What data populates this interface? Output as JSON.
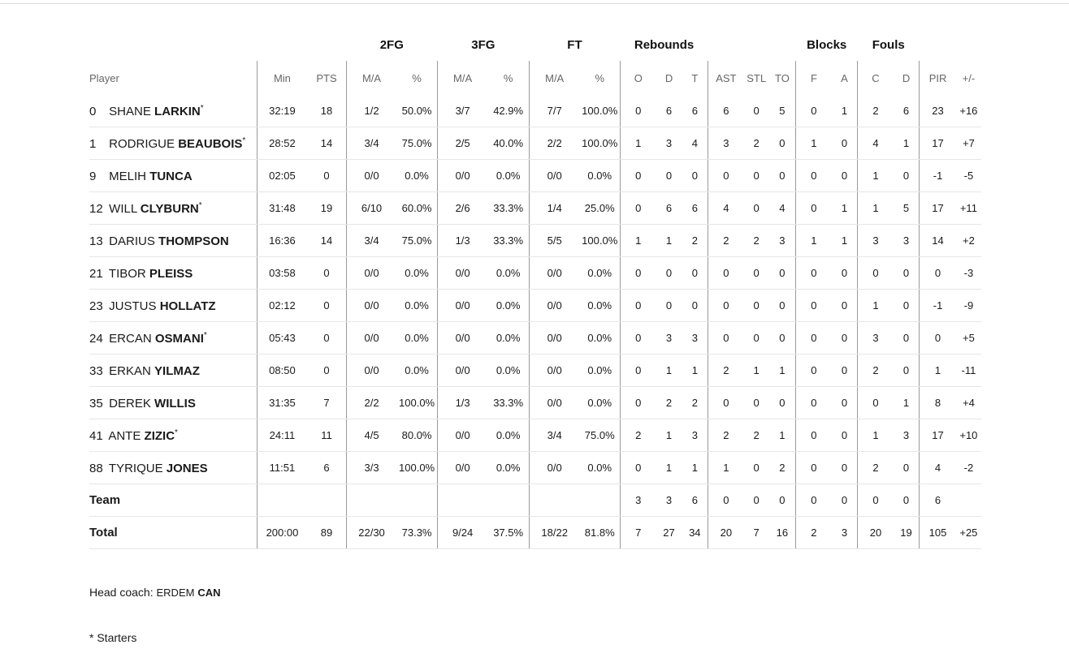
{
  "groups": {
    "fg2": "2FG",
    "fg3": "3FG",
    "ft": "FT",
    "rebounds": "Rebounds",
    "blocks": "Blocks",
    "fouls": "Fouls"
  },
  "columns": {
    "player": "Player",
    "min": "Min",
    "pts": "PTS",
    "fg2_ma": "M/A",
    "fg2_pct": "%",
    "fg3_ma": "M/A",
    "fg3_pct": "%",
    "ft_ma": "M/A",
    "ft_pct": "%",
    "reb_o": "O",
    "reb_d": "D",
    "reb_t": "T",
    "ast": "AST",
    "stl": "STL",
    "to": "TO",
    "blk_f": "F",
    "blk_a": "A",
    "foul_c": "C",
    "foul_d": "D",
    "pir": "PIR",
    "pm": "+/-"
  },
  "players": [
    {
      "num": "0",
      "first": "SHANE",
      "last": "LARKIN",
      "star": "*",
      "min": "32:19",
      "pts": "18",
      "fg2_ma": "1/2",
      "fg2_pct": "50.0%",
      "fg3_ma": "3/7",
      "fg3_pct": "42.9%",
      "ft_ma": "7/7",
      "ft_pct": "100.0%",
      "reb_o": "0",
      "reb_d": "6",
      "reb_t": "6",
      "ast": "6",
      "stl": "0",
      "to": "5",
      "blk_f": "0",
      "blk_a": "1",
      "foul_c": "2",
      "foul_d": "6",
      "pir": "23",
      "pm": "+16"
    },
    {
      "num": "1",
      "first": "RODRIGUE",
      "last": "BEAUBOIS",
      "star": "*",
      "min": "28:52",
      "pts": "14",
      "fg2_ma": "3/4",
      "fg2_pct": "75.0%",
      "fg3_ma": "2/5",
      "fg3_pct": "40.0%",
      "ft_ma": "2/2",
      "ft_pct": "100.0%",
      "reb_o": "1",
      "reb_d": "3",
      "reb_t": "4",
      "ast": "3",
      "stl": "2",
      "to": "0",
      "blk_f": "1",
      "blk_a": "0",
      "foul_c": "4",
      "foul_d": "1",
      "pir": "17",
      "pm": "+7"
    },
    {
      "num": "9",
      "first": "MELIH",
      "last": "TUNCA",
      "star": "",
      "min": "02:05",
      "pts": "0",
      "fg2_ma": "0/0",
      "fg2_pct": "0.0%",
      "fg3_ma": "0/0",
      "fg3_pct": "0.0%",
      "ft_ma": "0/0",
      "ft_pct": "0.0%",
      "reb_o": "0",
      "reb_d": "0",
      "reb_t": "0",
      "ast": "0",
      "stl": "0",
      "to": "0",
      "blk_f": "0",
      "blk_a": "0",
      "foul_c": "1",
      "foul_d": "0",
      "pir": "-1",
      "pm": "-5"
    },
    {
      "num": "12",
      "first": "WILL",
      "last": "CLYBURN",
      "star": "*",
      "min": "31:48",
      "pts": "19",
      "fg2_ma": "6/10",
      "fg2_pct": "60.0%",
      "fg3_ma": "2/6",
      "fg3_pct": "33.3%",
      "ft_ma": "1/4",
      "ft_pct": "25.0%",
      "reb_o": "0",
      "reb_d": "6",
      "reb_t": "6",
      "ast": "4",
      "stl": "0",
      "to": "4",
      "blk_f": "0",
      "blk_a": "1",
      "foul_c": "1",
      "foul_d": "5",
      "pir": "17",
      "pm": "+11"
    },
    {
      "num": "13",
      "first": "DARIUS",
      "last": "THOMPSON",
      "star": "",
      "min": "16:36",
      "pts": "14",
      "fg2_ma": "3/4",
      "fg2_pct": "75.0%",
      "fg3_ma": "1/3",
      "fg3_pct": "33.3%",
      "ft_ma": "5/5",
      "ft_pct": "100.0%",
      "reb_o": "1",
      "reb_d": "1",
      "reb_t": "2",
      "ast": "2",
      "stl": "2",
      "to": "3",
      "blk_f": "1",
      "blk_a": "1",
      "foul_c": "3",
      "foul_d": "3",
      "pir": "14",
      "pm": "+2"
    },
    {
      "num": "21",
      "first": "TIBOR",
      "last": "PLEISS",
      "star": "",
      "min": "03:58",
      "pts": "0",
      "fg2_ma": "0/0",
      "fg2_pct": "0.0%",
      "fg3_ma": "0/0",
      "fg3_pct": "0.0%",
      "ft_ma": "0/0",
      "ft_pct": "0.0%",
      "reb_o": "0",
      "reb_d": "0",
      "reb_t": "0",
      "ast": "0",
      "stl": "0",
      "to": "0",
      "blk_f": "0",
      "blk_a": "0",
      "foul_c": "0",
      "foul_d": "0",
      "pir": "0",
      "pm": "-3"
    },
    {
      "num": "23",
      "first": "JUSTUS",
      "last": "HOLLATZ",
      "star": "",
      "min": "02:12",
      "pts": "0",
      "fg2_ma": "0/0",
      "fg2_pct": "0.0%",
      "fg3_ma": "0/0",
      "fg3_pct": "0.0%",
      "ft_ma": "0/0",
      "ft_pct": "0.0%",
      "reb_o": "0",
      "reb_d": "0",
      "reb_t": "0",
      "ast": "0",
      "stl": "0",
      "to": "0",
      "blk_f": "0",
      "blk_a": "0",
      "foul_c": "1",
      "foul_d": "0",
      "pir": "-1",
      "pm": "-9"
    },
    {
      "num": "24",
      "first": "ERCAN",
      "last": "OSMANI",
      "star": "*",
      "min": "05:43",
      "pts": "0",
      "fg2_ma": "0/0",
      "fg2_pct": "0.0%",
      "fg3_ma": "0/0",
      "fg3_pct": "0.0%",
      "ft_ma": "0/0",
      "ft_pct": "0.0%",
      "reb_o": "0",
      "reb_d": "3",
      "reb_t": "3",
      "ast": "0",
      "stl": "0",
      "to": "0",
      "blk_f": "0",
      "blk_a": "0",
      "foul_c": "3",
      "foul_d": "0",
      "pir": "0",
      "pm": "+5"
    },
    {
      "num": "33",
      "first": "ERKAN",
      "last": "YILMAZ",
      "star": "",
      "min": "08:50",
      "pts": "0",
      "fg2_ma": "0/0",
      "fg2_pct": "0.0%",
      "fg3_ma": "0/0",
      "fg3_pct": "0.0%",
      "ft_ma": "0/0",
      "ft_pct": "0.0%",
      "reb_o": "0",
      "reb_d": "1",
      "reb_t": "1",
      "ast": "2",
      "stl": "1",
      "to": "1",
      "blk_f": "0",
      "blk_a": "0",
      "foul_c": "2",
      "foul_d": "0",
      "pir": "1",
      "pm": "-11"
    },
    {
      "num": "35",
      "first": "DEREK",
      "last": "WILLIS",
      "star": "",
      "min": "31:35",
      "pts": "7",
      "fg2_ma": "2/2",
      "fg2_pct": "100.0%",
      "fg3_ma": "1/3",
      "fg3_pct": "33.3%",
      "ft_ma": "0/0",
      "ft_pct": "0.0%",
      "reb_o": "0",
      "reb_d": "2",
      "reb_t": "2",
      "ast": "0",
      "stl": "0",
      "to": "0",
      "blk_f": "0",
      "blk_a": "0",
      "foul_c": "0",
      "foul_d": "1",
      "pir": "8",
      "pm": "+4"
    },
    {
      "num": "41",
      "first": "ANTE",
      "last": "ZIZIC",
      "star": "*",
      "min": "24:11",
      "pts": "11",
      "fg2_ma": "4/5",
      "fg2_pct": "80.0%",
      "fg3_ma": "0/0",
      "fg3_pct": "0.0%",
      "ft_ma": "3/4",
      "ft_pct": "75.0%",
      "reb_o": "2",
      "reb_d": "1",
      "reb_t": "3",
      "ast": "2",
      "stl": "2",
      "to": "1",
      "blk_f": "0",
      "blk_a": "0",
      "foul_c": "1",
      "foul_d": "3",
      "pir": "17",
      "pm": "+10"
    },
    {
      "num": "88",
      "first": "TYRIQUE",
      "last": "JONES",
      "star": "",
      "min": "11:51",
      "pts": "6",
      "fg2_ma": "3/3",
      "fg2_pct": "100.0%",
      "fg3_ma": "0/0",
      "fg3_pct": "0.0%",
      "ft_ma": "0/0",
      "ft_pct": "0.0%",
      "reb_o": "0",
      "reb_d": "1",
      "reb_t": "1",
      "ast": "1",
      "stl": "0",
      "to": "2",
      "blk_f": "0",
      "blk_a": "0",
      "foul_c": "2",
      "foul_d": "0",
      "pir": "4",
      "pm": "-2"
    }
  ],
  "team_row": {
    "label": "Team",
    "min": "",
    "pts": "",
    "fg2_ma": "",
    "fg2_pct": "",
    "fg3_ma": "",
    "fg3_pct": "",
    "ft_ma": "",
    "ft_pct": "",
    "reb_o": "3",
    "reb_d": "3",
    "reb_t": "6",
    "ast": "0",
    "stl": "0",
    "to": "0",
    "blk_f": "0",
    "blk_a": "0",
    "foul_c": "0",
    "foul_d": "0",
    "pir": "6",
    "pm": ""
  },
  "total_row": {
    "label": "Total",
    "min": "200:00",
    "pts": "89",
    "fg2_ma": "22/30",
    "fg2_pct": "73.3%",
    "fg3_ma": "9/24",
    "fg3_pct": "37.5%",
    "ft_ma": "18/22",
    "ft_pct": "81.8%",
    "reb_o": "7",
    "reb_d": "27",
    "reb_t": "34",
    "ast": "20",
    "stl": "7",
    "to": "16",
    "blk_f": "2",
    "blk_a": "3",
    "foul_c": "20",
    "foul_d": "19",
    "pir": "105",
    "pm": "+25"
  },
  "coach": {
    "label": "Head coach:",
    "first": "ERDEM",
    "last": "CAN"
  },
  "footnote": "* Starters"
}
